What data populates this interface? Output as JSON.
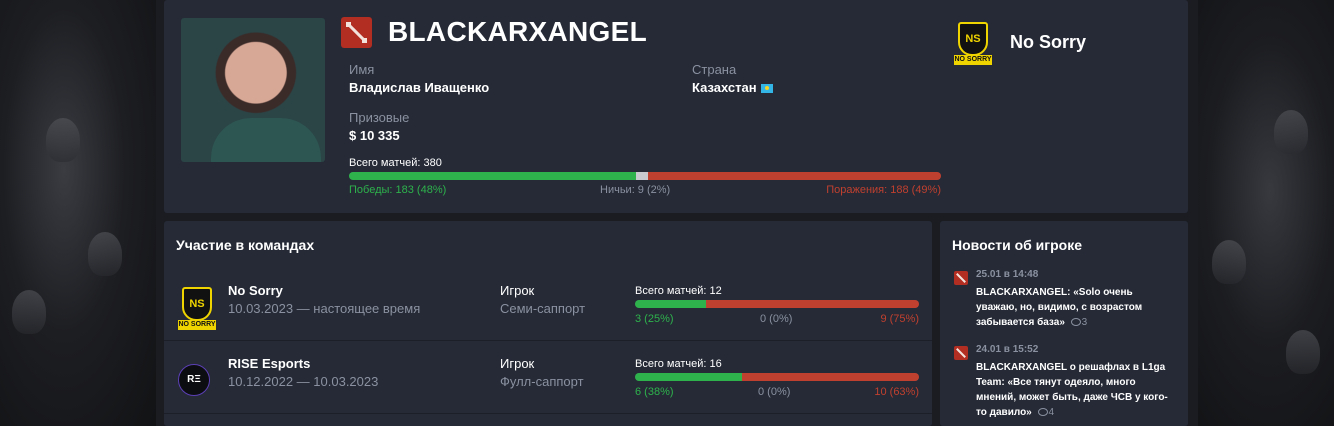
{
  "player": {
    "nickname": "BLACKARXANGEL",
    "game_icon": "dota2-icon",
    "name_label": "Имя",
    "name_value": "Владислав Иващенко",
    "country_label": "Страна",
    "country_value": "Казахстан",
    "prize_label": "Призовые",
    "prize_value": "$ 10 335",
    "current_team": "No Sorry",
    "stats": {
      "total_label": "Всего матчей: 380",
      "wins_label": "Победы: 183 (48%)",
      "draws_label": "Ничьи: 9 (2%)",
      "losses_label": "Поражения: 188 (49%)",
      "wins_pct": 48,
      "draws_pct": 2,
      "losses_pct": 49
    }
  },
  "teams_section": {
    "title": "Участие в командах",
    "rows": [
      {
        "team": "No Sorry",
        "period": "10.03.2023 — настоящее время",
        "role_label": "Игрок",
        "role": "Семи-саппорт",
        "total_label": "Всего матчей: 12",
        "wins_label": "3 (25%)",
        "draws_label": "0 (0%)",
        "losses_label": "9 (75%)",
        "wins_pct": 25,
        "draws_pct": 0,
        "losses_pct": 75
      },
      {
        "team": "RISE Esports",
        "logo_text": "RΞ",
        "period": "10.12.2022 — 10.03.2023",
        "role_label": "Игрок",
        "role": "Фулл-саппорт",
        "total_label": "Всего матчей: 16",
        "wins_label": "6 (38%)",
        "draws_label": "0 (0%)",
        "losses_label": "10 (63%)",
        "wins_pct": 38,
        "draws_pct": 0,
        "losses_pct": 63
      }
    ]
  },
  "news_section": {
    "title": "Новости об игроке",
    "items": [
      {
        "date": "25.01 в 14:48",
        "text": "BLACKARXANGEL: «Solo очень уважаю, но, видимо, с возрастом забывается база»",
        "comments": "3"
      },
      {
        "date": "24.01 в 15:52",
        "text": "BLACKARXANGEL о решафлах в L1ga Team: «Все тянут одеяло, много мнений, может быть, даже ЧСВ у кого-то давило»",
        "comments": "4"
      }
    ]
  },
  "colors": {
    "win": "#2eb24c",
    "draw": "#c8cad0",
    "loss": "#c0402f",
    "card": "#252a36",
    "emblem": "#f0d400"
  }
}
